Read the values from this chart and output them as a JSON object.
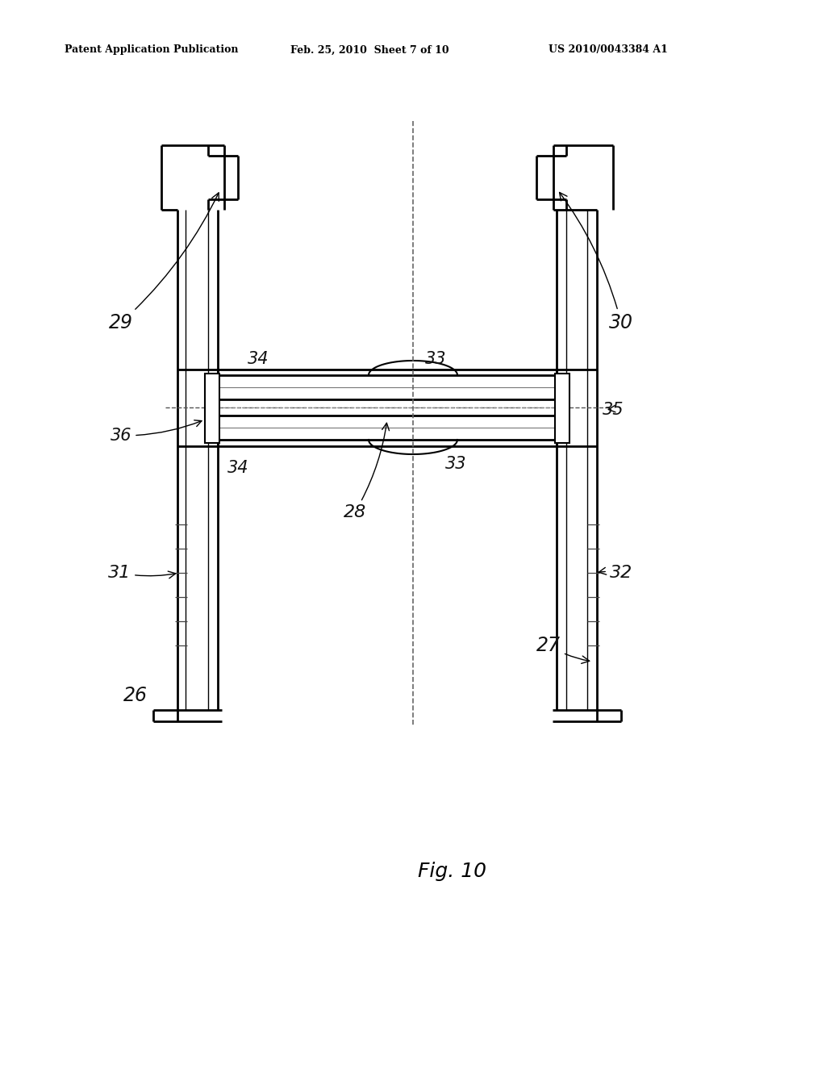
{
  "bg_color": "#ffffff",
  "header_left": "Patent Application Publication",
  "header_mid": "Feb. 25, 2010  Sheet 7 of 10",
  "header_right": "US 2010/0043384 A1",
  "fig_label": "Fig. 10",
  "line_color": "#000000"
}
